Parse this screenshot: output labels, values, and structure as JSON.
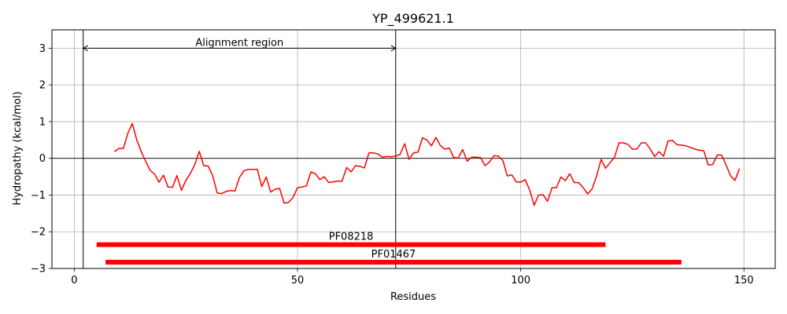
{
  "chart_data": {
    "type": "line",
    "title": "YP_499621.1",
    "xlabel": "Residues",
    "ylabel": "Hydropathy (kcal/mol)",
    "xlim": [
      -5,
      157
    ],
    "ylim": [
      -3,
      3.5
    ],
    "xticks": [
      0,
      50,
      100,
      150
    ],
    "yticks": [
      -3,
      -2,
      -1,
      0,
      1,
      2,
      3
    ],
    "xtick_labels": [
      "0",
      "50",
      "100",
      "150"
    ],
    "ytick_labels": [
      "−3",
      "−2",
      "−1",
      "0",
      "1",
      "2",
      "3"
    ],
    "grid": true,
    "series": [
      {
        "color": "#ff0000",
        "x": [
          9,
          10,
          11,
          12,
          13,
          14,
          15,
          16,
          17,
          18,
          19,
          20,
          21,
          22,
          23,
          24,
          25,
          26,
          27,
          28,
          29,
          30,
          31,
          32,
          33,
          34,
          35,
          36,
          37,
          38,
          39,
          40,
          41,
          42,
          43,
          44,
          45,
          46,
          47,
          48,
          49,
          50,
          51,
          52,
          53,
          54,
          55,
          56,
          57,
          58,
          59,
          60,
          61,
          62,
          63,
          64,
          65,
          66,
          67,
          68,
          69,
          70,
          71,
          72,
          73,
          74,
          75,
          76,
          77,
          78,
          79,
          80,
          81,
          82,
          83,
          84,
          85,
          86,
          87,
          88,
          89,
          90,
          91,
          92,
          93,
          94,
          95,
          96,
          97,
          98,
          99,
          100,
          101,
          102,
          103,
          104,
          105,
          106,
          107,
          108,
          109,
          110,
          111,
          112,
          113,
          114,
          115,
          116,
          117,
          118,
          119,
          120,
          121,
          122,
          123,
          124,
          125,
          126,
          127,
          128,
          129,
          130,
          131,
          132,
          133,
          134,
          135,
          136,
          137,
          138,
          139,
          140,
          141,
          142,
          143,
          144,
          145,
          146,
          147,
          148,
          149
        ],
        "y": [
          0.18,
          0.27,
          0.27,
          0.68,
          0.95,
          0.5,
          0.18,
          -0.08,
          -0.33,
          -0.43,
          -0.65,
          -0.46,
          -0.78,
          -0.79,
          -0.47,
          -0.87,
          -0.6,
          -0.41,
          -0.17,
          0.19,
          -0.2,
          -0.21,
          -0.47,
          -0.94,
          -0.96,
          -0.9,
          -0.88,
          -0.89,
          -0.52,
          -0.34,
          -0.3,
          -0.3,
          -0.3,
          -0.77,
          -0.51,
          -0.92,
          -0.84,
          -0.82,
          -1.22,
          -1.2,
          -1.07,
          -0.8,
          -0.78,
          -0.75,
          -0.37,
          -0.42,
          -0.58,
          -0.5,
          -0.66,
          -0.64,
          -0.62,
          -0.62,
          -0.25,
          -0.37,
          -0.2,
          -0.22,
          -0.26,
          0.15,
          0.15,
          0.12,
          0.03,
          0.05,
          0.04,
          0.06,
          0.11,
          0.4,
          -0.03,
          0.15,
          0.17,
          0.56,
          0.5,
          0.34,
          0.57,
          0.35,
          0.25,
          0.28,
          0.02,
          0.01,
          0.24,
          -0.08,
          0.03,
          0.03,
          0.02,
          -0.2,
          -0.1,
          0.07,
          0.06,
          -0.06,
          -0.48,
          -0.45,
          -0.64,
          -0.65,
          -0.58,
          -0.86,
          -1.28,
          -1.0,
          -0.99,
          -1.17,
          -0.8,
          -0.8,
          -0.51,
          -0.61,
          -0.42,
          -0.66,
          -0.66,
          -0.8,
          -0.97,
          -0.83,
          -0.48,
          -0.03,
          -0.27,
          -0.12,
          0.03,
          0.42,
          0.42,
          0.38,
          0.25,
          0.25,
          0.42,
          0.42,
          0.25,
          0.05,
          0.18,
          0.06,
          0.47,
          0.49,
          0.37,
          0.36,
          0.34,
          0.3,
          0.25,
          0.22,
          0.21,
          -0.18,
          -0.17,
          0.09,
          0.09,
          -0.18,
          -0.48,
          -0.6,
          -0.28
        ]
      }
    ],
    "bars": [
      {
        "label": "PF08218",
        "start": 5,
        "end": 119,
        "y": -2.35
      },
      {
        "label": "PF01467",
        "start": 7,
        "end": 136,
        "y": -2.83
      }
    ],
    "vlines": [
      2,
      72
    ],
    "annotation": {
      "text": "Alignment region",
      "x1": 2,
      "x2": 72,
      "y": 3.0,
      "text_x": 37
    }
  }
}
